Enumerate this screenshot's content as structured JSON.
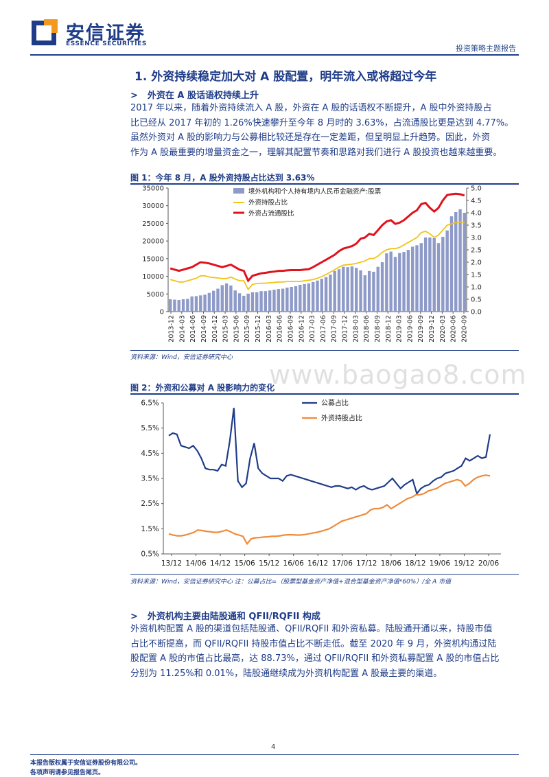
{
  "header": {
    "company_cn": "安信证券",
    "company_en": "ESSENCE SECURITIES",
    "report_type": "投资策略主题报告"
  },
  "section": {
    "title": "1. 外资持续稳定加大对 A 股配置，明年流入或将超过今年",
    "sub1": "外资在 A 股话语权持续上升",
    "para1": [
      "2017 年以来，随着外资持续流入 A 股，外资在 A 股的话语权不断提升，A 股中外资持股占",
      "比已经从 2017 年初的 1.26%快速攀升至今年 8 月时的 3.63%，占流通股比更是达到 4.77%。",
      "虽然外资对 A 股的影响力与公募相比较还是存在一定差距，但呈明显上升趋势。因此，外资",
      "作为 A 股最重要的增量资金之一，理解其配置节奏和思路对我们进行 A 股投资也越来越重要。"
    ],
    "sub2": "外资机构主要由陆股通和 QFII/RQFII 构成",
    "para2": [
      "外资机构配置 A 股的渠道包括陆股通、QFII/RQFII 和外资私募。陆股通开通以来，持股市值",
      "占比不断提高，而 QFII/RQFII 持股市值占比不断走低。截至 2020 年 9 月，外资机构通过陆",
      "股配置 A 股的市值占比最高，达 88.73%，通过 QFII/RQFII 和外资私募配置 A 股的市值占比",
      "分别为 11.25%和 0.01%，陆股通继续成为外资机构配置 A 股最主要的渠道。"
    ]
  },
  "figure1": {
    "caption": "图 1：今年 8 月，A 股外资持股占比达到 3.63%",
    "source": "资料来源：Wind，安信证券研究中心"
  },
  "figure2": {
    "caption": "图 2：外资和公募对 A 股影响力的变化",
    "source": "资料来源：Wind，安信证券研究中心    注：公募占比=（股票型基金资产净值+混合型基金资产净值*60%）/全 A 市值"
  },
  "watermark": "www.baogao8.com",
  "footer": {
    "line1": "本报告版权属于安信证券股份有限公司。",
    "line2": "各项声明请参见报告尾页。",
    "page": "4"
  },
  "colors": {
    "brand": "#1f3c88",
    "bar": "#8e9ac8",
    "yellow": "#f0c419",
    "red": "#e0121b",
    "navy": "#1f3c88",
    "orange": "#ef8a3a"
  },
  "chart_data": [
    {
      "type": "bar",
      "title": "",
      "x_ticks": [
        "2013-12",
        "2014-03",
        "2014-06",
        "2014-09",
        "2014-12",
        "2015-03",
        "2015-06",
        "2015-09",
        "2015-12",
        "2016-03",
        "2016-06",
        "2016-09",
        "2016-12",
        "2017-03",
        "2017-06",
        "2017-09",
        "2017-12",
        "2018-03",
        "2018-06",
        "2018-09",
        "2018-12",
        "2019-03",
        "2019-06",
        "2019-09",
        "2019-12",
        "2020-03",
        "2020-06",
        "2020-09"
      ],
      "y_left": {
        "lim": [
          0,
          35000
        ],
        "ticks": [
          "0",
          "5000",
          "10000",
          "15000",
          "20000",
          "25000",
          "30000",
          "35000"
        ]
      },
      "y_right": {
        "lim": [
          0,
          5.0
        ],
        "ticks": [
          "0.0",
          "0.5",
          "1.0",
          "1.5",
          "2.0",
          "2.5",
          "3.0",
          "3.5",
          "4.0",
          "4.5",
          "5.0"
        ]
      },
      "legend_position": "top-left",
      "series": [
        {
          "name": "境外机构和个人持有境内人民币金融资产:股票",
          "kind": "bar",
          "axis": "left",
          "values": [
            3500,
            3400,
            3300,
            3500,
            3600,
            4300,
            4400,
            4600,
            4800,
            5300,
            5900,
            6500,
            7500,
            8000,
            7400,
            6000,
            5200,
            4500,
            5100,
            5500,
            5500,
            5800,
            5800,
            6000,
            6200,
            6400,
            6500,
            6800,
            7000,
            7200,
            7600,
            7800,
            8000,
            8400,
            8800,
            9300,
            9800,
            10500,
            11500,
            12000,
            12700,
            12600,
            12800,
            12400,
            11700,
            10300,
            11500,
            11300,
            12700,
            14000,
            16500,
            17000,
            15500,
            16600,
            16900,
            17500,
            18400,
            18800,
            19400,
            21000,
            21000,
            20800,
            19400,
            21200,
            23000,
            27000,
            28200,
            29000,
            28000
          ]
        },
        {
          "name": "外资持股占比",
          "kind": "line",
          "axis": "right",
          "values": [
            1.3,
            1.25,
            1.2,
            1.2,
            1.25,
            1.3,
            1.35,
            1.45,
            1.45,
            1.4,
            1.38,
            1.36,
            1.34,
            1.34,
            1.4,
            1.32,
            1.25,
            1.25,
            0.9,
            1.1,
            1.14,
            1.15,
            1.15,
            1.17,
            1.18,
            1.2,
            1.2,
            1.22,
            1.22,
            1.22,
            1.22,
            1.25,
            1.27,
            1.3,
            1.35,
            1.42,
            1.5,
            1.6,
            1.7,
            1.8,
            1.88,
            1.9,
            1.92,
            1.95,
            2.0,
            2.05,
            2.15,
            2.15,
            2.25,
            2.4,
            2.5,
            2.55,
            2.55,
            2.6,
            2.7,
            2.8,
            2.9,
            3.0,
            3.2,
            3.25,
            3.15,
            3.0,
            3.1,
            3.3,
            3.5,
            3.55,
            3.6,
            3.63,
            3.6
          ]
        },
        {
          "name": "外资占流通股比",
          "kind": "line",
          "axis": "right",
          "values": [
            1.75,
            1.7,
            1.65,
            1.7,
            1.75,
            1.8,
            1.9,
            2.0,
            1.98,
            1.95,
            1.9,
            1.85,
            1.8,
            1.85,
            1.9,
            1.8,
            1.7,
            1.65,
            1.25,
            1.45,
            1.5,
            1.55,
            1.57,
            1.6,
            1.62,
            1.65,
            1.65,
            1.67,
            1.68,
            1.68,
            1.68,
            1.7,
            1.72,
            1.8,
            1.9,
            2.0,
            2.1,
            2.2,
            2.3,
            2.45,
            2.55,
            2.6,
            2.65,
            2.75,
            2.95,
            3.0,
            3.15,
            3.1,
            3.3,
            3.5,
            3.65,
            3.7,
            3.55,
            3.6,
            3.7,
            3.85,
            4.0,
            4.1,
            4.35,
            4.4,
            4.2,
            4.05,
            4.2,
            4.5,
            4.72,
            4.75,
            4.77,
            4.75,
            4.7
          ]
        }
      ]
    },
    {
      "type": "line",
      "title": "",
      "x_ticks": [
        "13/12",
        "14/06",
        "14/12",
        "15/06",
        "15/12",
        "16/06",
        "16/12",
        "17/06",
        "17/12",
        "18/06",
        "18/12",
        "19/06",
        "19/12",
        "20/06"
      ],
      "y": {
        "lim": [
          0.5,
          6.5
        ],
        "ticks": [
          "0.5%",
          "1.5%",
          "2.5%",
          "3.5%",
          "4.5%",
          "5.5%",
          "6.5%"
        ]
      },
      "legend_position": "top-right",
      "series": [
        {
          "name": "公募占比",
          "values": [
            5.2,
            5.3,
            5.25,
            4.8,
            4.75,
            4.7,
            4.8,
            4.6,
            4.3,
            3.9,
            3.85,
            3.85,
            3.8,
            4.05,
            4.0,
            5.0,
            6.3,
            3.4,
            3.15,
            3.3,
            4.3,
            4.9,
            3.9,
            3.7,
            3.6,
            3.5,
            3.5,
            3.5,
            3.4,
            3.6,
            3.65,
            3.6,
            3.55,
            3.5,
            3.45,
            3.4,
            3.35,
            3.3,
            3.25,
            3.2,
            3.15,
            3.2,
            3.2,
            3.15,
            3.1,
            3.15,
            3.05,
            3.15,
            3.2,
            3.1,
            3.05,
            3.1,
            3.15,
            3.2,
            3.35,
            3.5,
            3.3,
            3.1,
            3.25,
            3.35,
            3.45,
            2.9,
            3.1,
            3.2,
            3.25,
            3.4,
            3.5,
            3.55,
            3.7,
            3.75,
            3.8,
            3.9,
            4.0,
            4.3,
            4.2,
            4.3,
            4.4,
            4.3,
            4.35,
            5.25
          ]
        },
        {
          "name": "外资持股占比",
          "values": [
            1.3,
            1.25,
            1.22,
            1.22,
            1.25,
            1.3,
            1.35,
            1.45,
            1.43,
            1.4,
            1.38,
            1.36,
            1.36,
            1.4,
            1.45,
            1.38,
            1.3,
            1.25,
            1.2,
            0.9,
            1.1,
            1.14,
            1.15,
            1.17,
            1.18,
            1.2,
            1.2,
            1.22,
            1.25,
            1.26,
            1.26,
            1.25,
            1.25,
            1.27,
            1.3,
            1.33,
            1.36,
            1.4,
            1.45,
            1.5,
            1.6,
            1.7,
            1.8,
            1.85,
            1.9,
            1.95,
            2.0,
            2.05,
            2.1,
            2.25,
            2.3,
            2.3,
            2.35,
            2.45,
            2.3,
            2.4,
            2.5,
            2.6,
            2.7,
            2.75,
            2.85,
            2.85,
            2.9,
            3.0,
            3.05,
            3.1,
            3.2,
            3.3,
            3.35,
            3.4,
            3.45,
            3.4,
            3.2,
            3.3,
            3.45,
            3.55,
            3.6,
            3.63,
            3.6
          ]
        }
      ]
    }
  ]
}
